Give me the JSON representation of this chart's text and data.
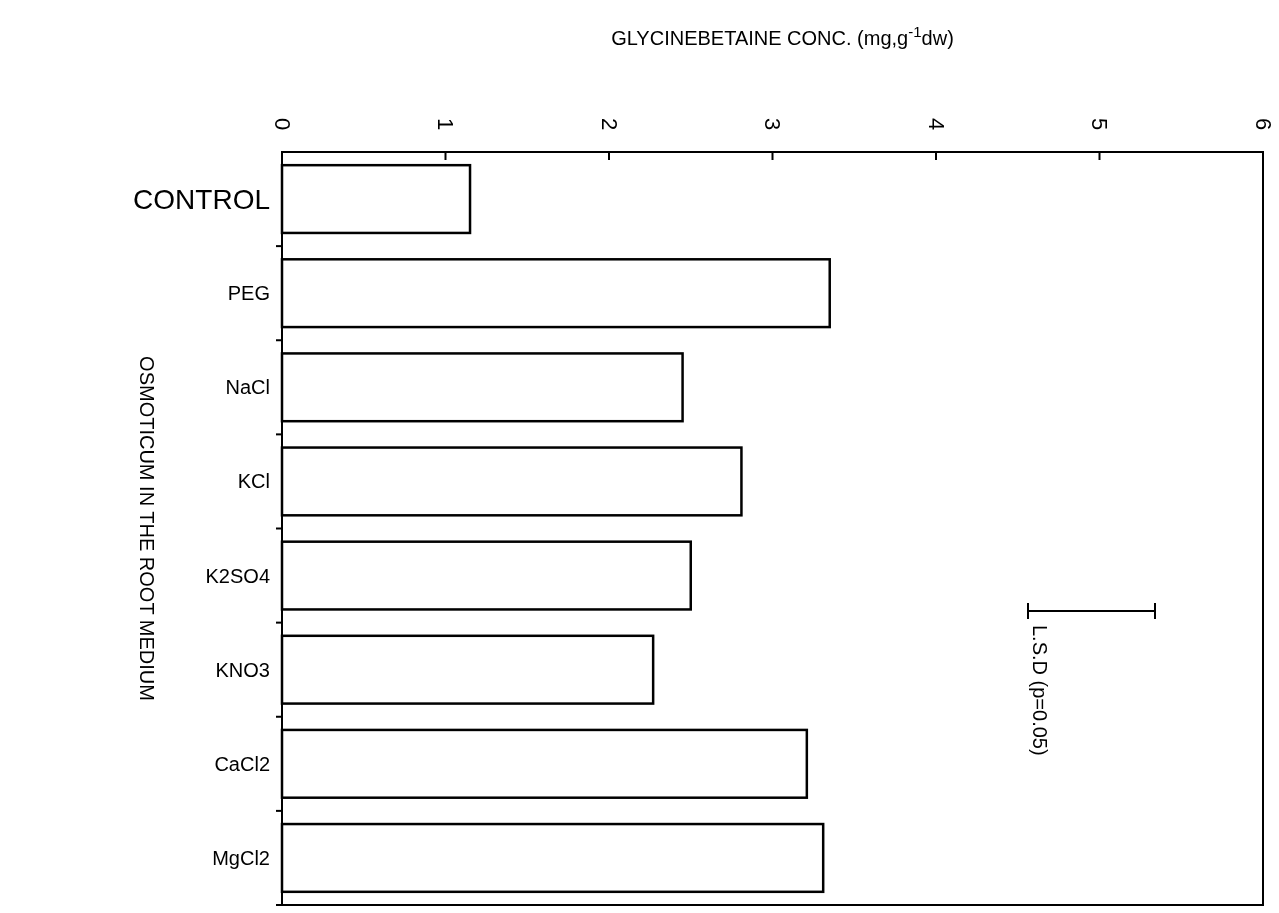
{
  "chart_data": {
    "type": "bar",
    "orientation": "horizontal",
    "xlabel": "GLYCINEBETAINE CONC. (mg,g$^{-1}$dw)",
    "ylabel": "OSMOTICUM IN THE ROOT MEDIUM",
    "categories": [
      "CONTROL",
      "PEG",
      "NaCl",
      "KCl",
      "K2SO4",
      "KNO3",
      "CaCl2",
      "MgCl2"
    ],
    "values": [
      1.15,
      3.35,
      2.45,
      2.81,
      2.5,
      2.27,
      3.21,
      3.31
    ],
    "color": "#ffffff",
    "xlim": [
      0,
      6
    ],
    "xticks": [
      0,
      1,
      2,
      3,
      4,
      5,
      6
    ],
    "grid": false,
    "annotations": [
      "L.S.D (p=0.05)"
    ]
  }
}
